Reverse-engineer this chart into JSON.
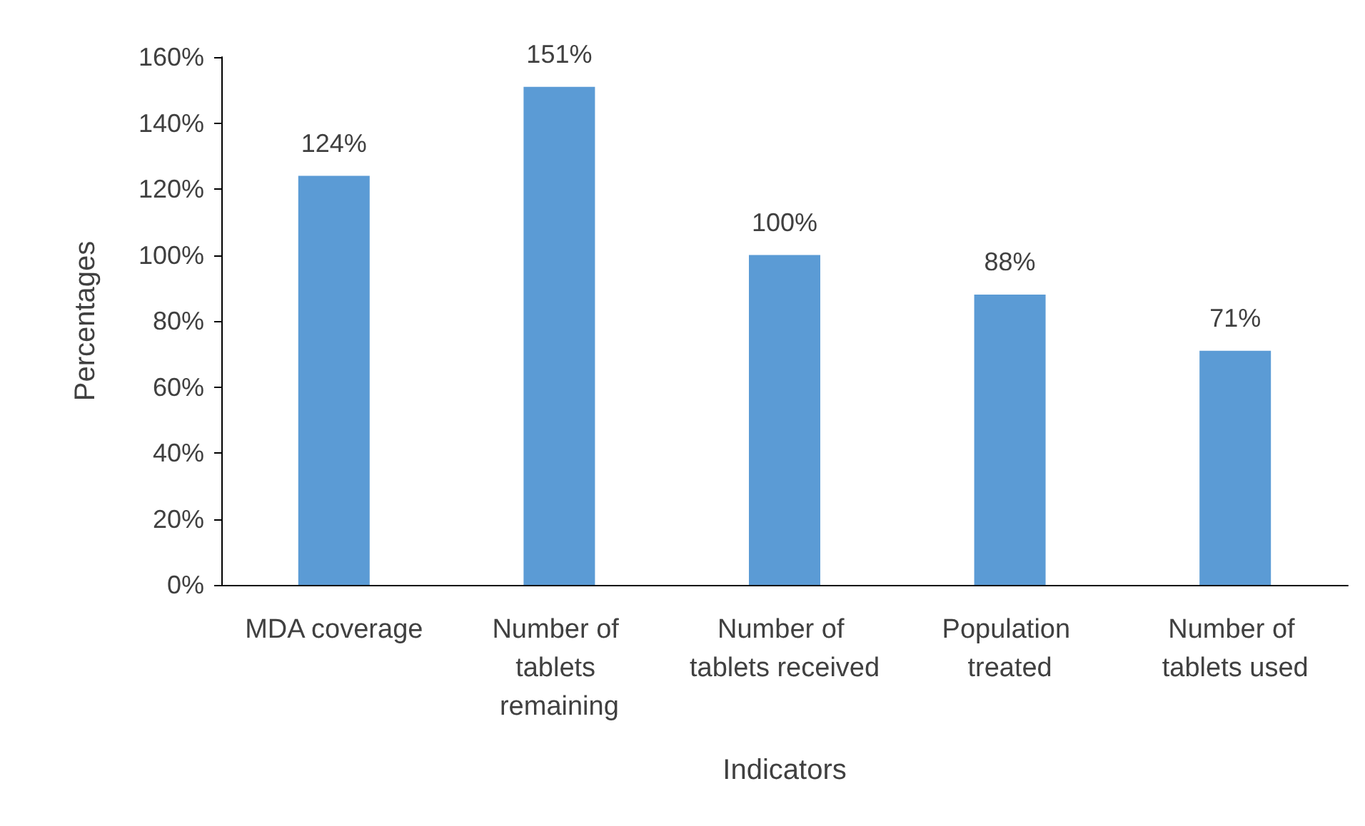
{
  "chart_data": {
    "type": "bar",
    "xlabel": "Indicators",
    "ylabel": "Percentages",
    "categories": [
      "MDA coverage",
      "Number of tablets remaining",
      "Number of tablets received",
      "Population treated",
      "Number of tablets used"
    ],
    "values": [
      124,
      151,
      100,
      88,
      71
    ],
    "color": "#5b9bd5",
    "value_labels": [
      "124%",
      "151%",
      "100%",
      "88%",
      "71%"
    ],
    "ylim": [
      0,
      160
    ],
    "yticks": [
      {
        "value": 0,
        "label": "0%"
      },
      {
        "value": 20,
        "label": "20%"
      },
      {
        "value": 40,
        "label": "40%"
      },
      {
        "value": 60,
        "label": "60%"
      },
      {
        "value": 80,
        "label": "80%"
      },
      {
        "value": 100,
        "label": "100%"
      },
      {
        "value": 120,
        "label": "120%"
      },
      {
        "value": 140,
        "label": "140%"
      },
      {
        "value": 160,
        "label": "160%"
      }
    ],
    "grid": false
  }
}
